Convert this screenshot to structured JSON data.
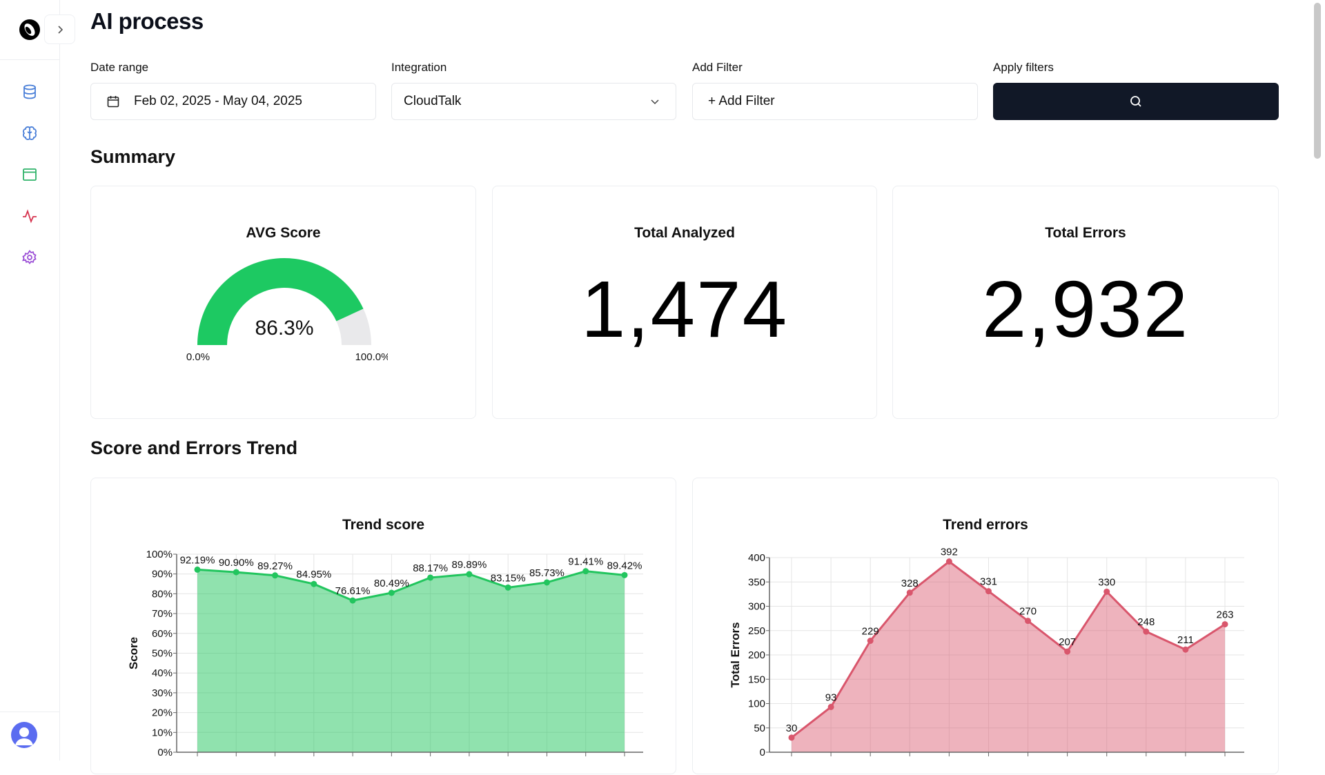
{
  "page": {
    "title": "AI process"
  },
  "sidebar": {
    "items": [
      {
        "name": "sidebar-item-data",
        "icon": "database-icon",
        "color": "#4a7fd8"
      },
      {
        "name": "sidebar-item-ai",
        "icon": "brain-icon",
        "color": "#4a7fd8"
      },
      {
        "name": "sidebar-item-browser",
        "icon": "browser-window-icon",
        "color": "#2fb36a"
      },
      {
        "name": "sidebar-item-activity",
        "icon": "activity-icon",
        "color": "#d6334e"
      },
      {
        "name": "sidebar-item-settings",
        "icon": "gear-icon",
        "color": "#9b4fd6"
      }
    ]
  },
  "filters": {
    "date_range": {
      "label": "Date range",
      "value": "Feb 02, 2025 - May 04, 2025"
    },
    "integration": {
      "label": "Integration",
      "value": "CloudTalk"
    },
    "add_filter": {
      "label": "Add Filter",
      "button": "+ Add Filter"
    },
    "apply": {
      "label": "Apply filters"
    }
  },
  "summary": {
    "heading": "Summary",
    "avg_score": {
      "title": "AVG Score",
      "value": "86.3%",
      "fraction": 0.863,
      "min": "0.0%",
      "max": "100.0%",
      "color": "#1dc962"
    },
    "total_analyzed": {
      "title": "Total Analyzed",
      "value": "1,474"
    },
    "total_errors": {
      "title": "Total Errors",
      "value": "2,932"
    }
  },
  "trend": {
    "heading": "Score and Errors Trend"
  },
  "chart_data": [
    {
      "type": "area",
      "title": "Trend score",
      "ylabel": "Score",
      "ylim": [
        0,
        100
      ],
      "yticks": [
        "0%",
        "10%",
        "20%",
        "30%",
        "40%",
        "50%",
        "60%",
        "70%",
        "80%",
        "90%",
        "100%"
      ],
      "grid": true,
      "color": "#22c55e",
      "values": [
        92.19,
        90.9,
        89.27,
        84.95,
        76.61,
        80.49,
        88.17,
        89.89,
        83.15,
        85.73,
        91.41,
        89.42
      ],
      "labels": [
        "92.19%",
        "90.90%",
        "89.27%",
        "84.95%",
        "76.61%",
        "80.49%",
        "88.17%",
        "89.89%",
        "83.15%",
        "85.73%",
        "91.41%",
        "89.42%"
      ]
    },
    {
      "type": "area",
      "title": "Trend errors",
      "ylabel": "Total Errors",
      "ylim": [
        0,
        400
      ],
      "yticks": [
        "0",
        "50",
        "100",
        "150",
        "200",
        "250",
        "300",
        "350",
        "400"
      ],
      "grid": true,
      "color": "#d9566c",
      "values": [
        30,
        93,
        229,
        328,
        392,
        331,
        270,
        207,
        330,
        248,
        211,
        263
      ],
      "labels": [
        "30",
        "93",
        "229",
        "328",
        "392",
        "331",
        "270",
        "207",
        "330",
        "248",
        "211",
        "263"
      ]
    }
  ]
}
